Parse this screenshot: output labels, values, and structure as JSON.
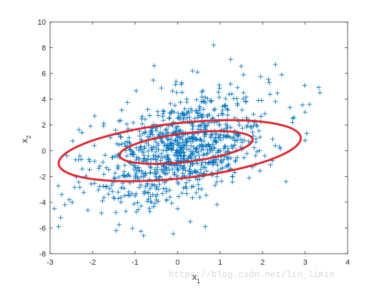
{
  "chart_data": {
    "type": "scatter",
    "xlim": [
      -3,
      4
    ],
    "ylim": [
      -8,
      10
    ],
    "x_ticks": [
      "-3",
      "-2",
      "-1",
      "0",
      "1",
      "2",
      "3",
      "4"
    ],
    "y_ticks": [
      "-8",
      "-6",
      "-4",
      "-2",
      "0",
      "2",
      "4",
      "6",
      "8",
      "10"
    ],
    "xlabel": "x1",
    "xlabel_sub": "1",
    "ylabel": "x2",
    "ylabel_sub": "2",
    "grid": false,
    "box": true,
    "marker": "+",
    "marker_color": "#0072BD",
    "contour_color": "#E0242C",
    "sample_count": 1000,
    "distribution": {
      "mean": [
        0.1,
        0.2
      ],
      "std_x1": 1.0,
      "std_x2": 2.2,
      "correlation": 0.45
    },
    "ellipses": [
      {
        "center": [
          0.2,
          0.25
        ],
        "semi_major": 1.75,
        "semi_minor": 1.0,
        "angle_deg": 33
      },
      {
        "center": [
          0.05,
          0.0
        ],
        "semi_major": 3.15,
        "semi_minor": 1.95,
        "angle_deg": 33
      }
    ],
    "points": [
      [
        0.85,
        8.2
      ],
      [
        -0.55,
        6.6
      ],
      [
        1.25,
        7.1
      ],
      [
        0.35,
        6.2
      ],
      [
        1.55,
        5.9
      ],
      [
        2.3,
        6.7
      ],
      [
        2.45,
        5.9
      ],
      [
        -0.8,
        -6.6
      ],
      [
        0.65,
        -5.9
      ],
      [
        0.3,
        -5.5
      ],
      [
        2.55,
        -2.4
      ],
      [
        3.35,
        4.5
      ],
      [
        3.0,
        3.0
      ],
      [
        3.1,
        3.6
      ],
      [
        3.0,
        0.8
      ],
      [
        -2.75,
        -5.2
      ],
      [
        -2.8,
        -5.9
      ],
      [
        -2.55,
        -3.8
      ],
      [
        -2.65,
        -4.2
      ],
      [
        -2.9,
        -4.5
      ],
      [
        -2.4,
        -0.7
      ],
      [
        -2.3,
        -0.4
      ],
      [
        -1.95,
        2.7
      ],
      [
        -2.25,
        1.4
      ],
      [
        -2.05,
        1.9
      ],
      [
        2.7,
        2.2
      ],
      [
        2.4,
        0.3
      ],
      [
        2.05,
        -0.4
      ],
      [
        1.9,
        3.9
      ],
      [
        1.55,
        4.5
      ]
    ],
    "watermark": "https://blog.csdn.net/lin_limin"
  }
}
